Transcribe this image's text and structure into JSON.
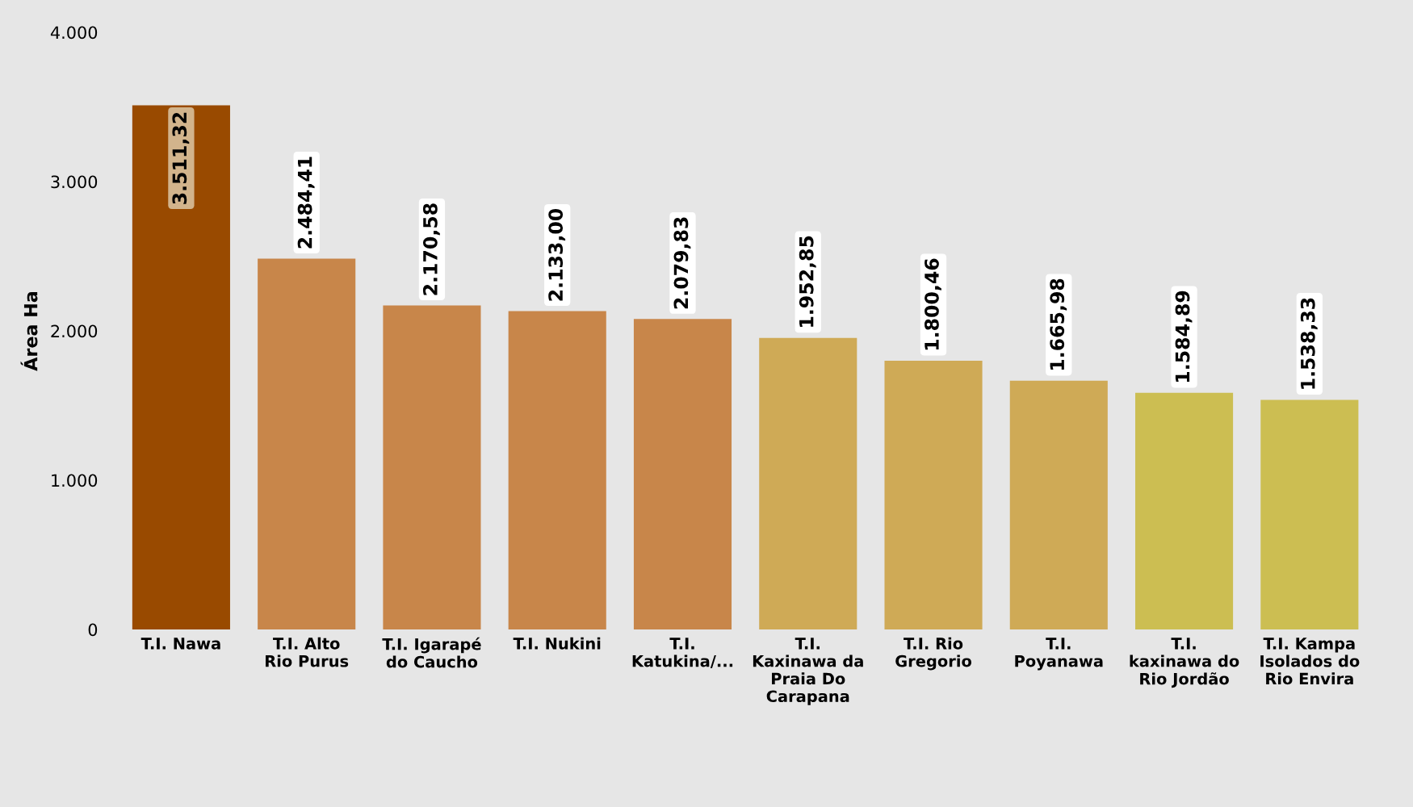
{
  "chart_data": {
    "type": "bar",
    "ylabel": "Área Ha",
    "categories": [
      "T.I. Nawa",
      "T.I. Alto Rio Purus",
      "T.I. Igarapé do Caucho",
      "T.I. Nukini",
      "T.I. Katukina/...",
      "T.I. Kaxinawa da Praia Do Carapana",
      "T.I. Rio Gregorio",
      "T.I. Poyanawa",
      "T.I. kaxinawa do Rio Jordão",
      "T.I. Kampa Isolados do Rio Envira"
    ],
    "values": [
      3511.32,
      2484.41,
      2170.58,
      2133.0,
      2079.83,
      1952.85,
      1800.46,
      1665.98,
      1584.89,
      1538.33
    ],
    "value_labels": [
      "3.511,32",
      "2.484,41",
      "2.170,58",
      "2.133,00",
      "2.079,83",
      "1.952,85",
      "1.800,46",
      "1.665,98",
      "1.584,89",
      "1.538,33"
    ],
    "colors": [
      "#994a00",
      "#c8864a",
      "#c8864a",
      "#c8864a",
      "#c8864a",
      "#cfaa56",
      "#cfaa56",
      "#cfaa56",
      "#ccbe52",
      "#ccbe52"
    ],
    "ylim": [
      0,
      4000
    ],
    "yticks": [
      {
        "value": 0,
        "label": "0"
      },
      {
        "value": 1000,
        "label": "1.000"
      },
      {
        "value": 2000,
        "label": "2.000"
      },
      {
        "value": 3000,
        "label": "3.000"
      },
      {
        "value": 4000,
        "label": "4.000"
      }
    ],
    "grid": false,
    "legend": false
  }
}
